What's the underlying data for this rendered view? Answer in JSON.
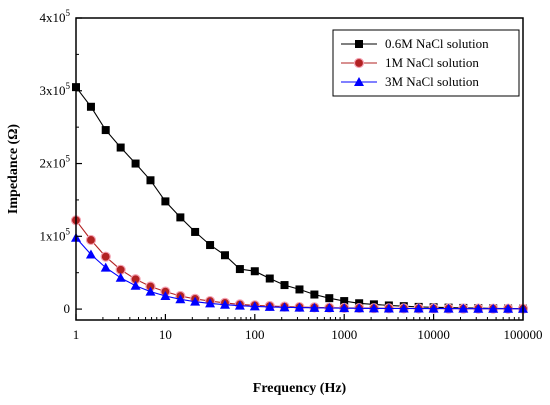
{
  "chart_data": {
    "type": "line",
    "title": "",
    "xlabel": "Frequency (Hz)",
    "ylabel": "Impedance (Ω)",
    "xscale": "log",
    "xlim": [
      1,
      100000
    ],
    "ylim": [
      -15000,
      400000
    ],
    "xticks": [
      {
        "value": 1,
        "label": "1"
      },
      {
        "value": 10,
        "label": "10"
      },
      {
        "value": 100,
        "label": "100"
      },
      {
        "value": 1000,
        "label": "1000"
      },
      {
        "value": 10000,
        "label": "10000"
      },
      {
        "value": 100000,
        "label": "100000"
      }
    ],
    "yticks": [
      {
        "value": 0,
        "label": "0",
        "mantissa": "",
        "exponent": ""
      },
      {
        "value": 100000,
        "label": "1x10^5",
        "mantissa": "1x10",
        "exponent": "5"
      },
      {
        "value": 200000,
        "label": "2x10^5",
        "mantissa": "2x10",
        "exponent": "5"
      },
      {
        "value": 300000,
        "label": "3x10^5",
        "mantissa": "3x10",
        "exponent": "5"
      },
      {
        "value": 400000,
        "label": "4x10^5",
        "mantissa": "4x10",
        "exponent": "5"
      }
    ],
    "legend_position": "top-right",
    "x": [
      1,
      1.47,
      2.15,
      3.16,
      4.64,
      6.81,
      10,
      14.7,
      21.5,
      31.6,
      46.4,
      68.1,
      100,
      147,
      215,
      316,
      464,
      681,
      1000,
      1470,
      2150,
      3160,
      4640,
      6810,
      10000,
      14700,
      21500,
      31600,
      46400,
      68100,
      100000
    ],
    "series": [
      {
        "name": "0.6M NaCl solution",
        "color": "#000000",
        "marker": "square",
        "values": [
          305000,
          278000,
          246000,
          222000,
          200000,
          177000,
          148000,
          126000,
          106000,
          88000,
          74000,
          55000,
          52000,
          42000,
          33000,
          27000,
          20000,
          15000,
          11000,
          8000,
          6500,
          5000,
          4000,
          3000,
          2500,
          2000,
          1600,
          1300,
          1000,
          800,
          600
        ]
      },
      {
        "name": "1M NaCl solution",
        "color": "#b22222",
        "marker": "circle",
        "values": [
          122000,
          95000,
          72000,
          54000,
          41000,
          31000,
          24000,
          18000,
          14000,
          11000,
          8500,
          6500,
          5200,
          4200,
          3400,
          2800,
          2300,
          1900,
          1600,
          1400,
          1200,
          1050,
          950,
          850,
          760,
          690,
          630,
          580,
          540,
          510,
          480
        ]
      },
      {
        "name": "3M NaCl solution",
        "color": "#0000ff",
        "marker": "triangle",
        "values": [
          98000,
          75000,
          57000,
          43000,
          32000,
          24000,
          18000,
          13500,
          10200,
          7800,
          6000,
          4700,
          3700,
          3000,
          2400,
          2000,
          1700,
          1450,
          1250,
          1100,
          970,
          870,
          790,
          720,
          660,
          610,
          570,
          530,
          500,
          470,
          450
        ]
      }
    ]
  }
}
